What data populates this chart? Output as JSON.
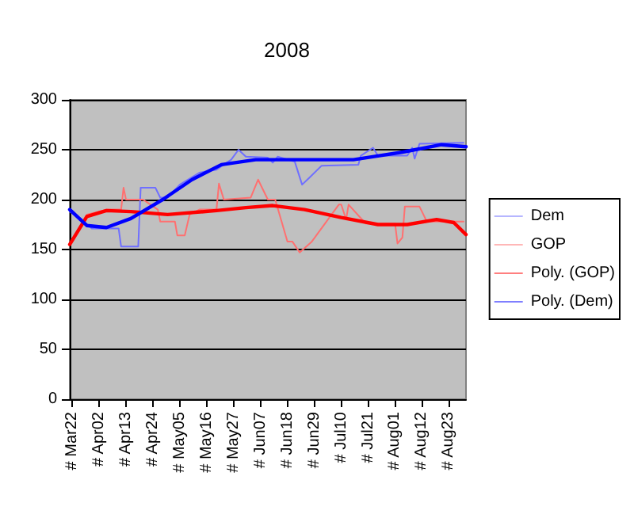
{
  "chart_data": {
    "type": "line",
    "title": "2008",
    "legend": "right",
    "grid": "y",
    "marker": "none",
    "line_style": "solid",
    "xlim": [
      "--03-21",
      "--08-30"
    ],
    "xticks": [
      {
        "value": "--03-22",
        "label": "# Mar22"
      },
      {
        "value": "--04-02",
        "label": "# Apr02"
      },
      {
        "value": "--04-13",
        "label": "# Apr13"
      },
      {
        "value": "--04-24",
        "label": "# Apr24"
      },
      {
        "value": "--05-05",
        "label": "# May05"
      },
      {
        "value": "--05-16",
        "label": "# May16"
      },
      {
        "value": "--05-27",
        "label": "# May27"
      },
      {
        "value": "--06-07",
        "label": "# Jun07"
      },
      {
        "value": "--06-18",
        "label": "# Jun18"
      },
      {
        "value": "--06-29",
        "label": "# Jun29"
      },
      {
        "value": "--07-10",
        "label": "# Jul10"
      },
      {
        "value": "--07-21",
        "label": "# Jul21"
      },
      {
        "value": "--08-01",
        "label": "# Aug01"
      },
      {
        "value": "--08-12",
        "label": "# Aug12"
      },
      {
        "value": "--08-23",
        "label": "# Aug23"
      }
    ],
    "ylim": [
      0,
      300
    ],
    "yticks": [
      0,
      50,
      100,
      150,
      200,
      250,
      300
    ],
    "series": [
      {
        "name": "Dem",
        "color": "#6f6fff",
        "x": [
          "--03-21",
          "--03-26",
          "--03-30",
          "--04-10",
          "--04-11",
          "--04-18",
          "--04-19",
          "--04-25",
          "--04-27",
          "--04-30",
          "--05-05",
          "--05-13",
          "--05-20",
          "--05-26",
          "--05-29",
          "--06-01",
          "--06-10",
          "--06-12",
          "--06-14",
          "--06-21",
          "--06-24",
          "--06-27",
          "--07-02",
          "--07-17",
          "--07-18",
          "--07-23",
          "--07-25",
          "--08-06",
          "--08-08",
          "--08-09",
          "--08-11",
          "--08-29"
        ],
        "values": [
          188,
          180,
          171,
          171,
          153,
          153,
          212,
          212,
          202,
          202,
          215,
          227,
          230,
          240,
          250,
          243,
          242,
          237,
          243,
          238,
          215,
          222,
          234,
          235,
          244,
          252,
          244,
          244,
          252,
          241,
          256,
          257
        ]
      },
      {
        "name": "GOP",
        "color": "#ff7070",
        "x": [
          "--03-21",
          "--03-28",
          "--04-05",
          "--04-11",
          "--04-12",
          "--04-13",
          "--04-20",
          "--04-26",
          "--04-27",
          "--05-03",
          "--05-04",
          "--05-07",
          "--05-09",
          "--05-13",
          "--05-20",
          "--05-21",
          "--05-23",
          "--06-03",
          "--06-06",
          "--06-10",
          "--06-13",
          "--06-18",
          "--06-20",
          "--06-23",
          "--06-28",
          "--07-09",
          "--07-10",
          "--07-12",
          "--07-13",
          "--07-20",
          "--08-01",
          "--08-02",
          "--08-04",
          "--08-05",
          "--08-11",
          "--08-14",
          "--08-17",
          "--08-29"
        ],
        "values": [
          155,
          185,
          190,
          190,
          212,
          200,
          200,
          190,
          178,
          178,
          164,
          164,
          185,
          190,
          190,
          216,
          200,
          202,
          220,
          200,
          200,
          158,
          158,
          147,
          158,
          195,
          195,
          180,
          195,
          176,
          176,
          156,
          162,
          193,
          193,
          178,
          178,
          178
        ]
      },
      {
        "name": "Poly. (GOP)",
        "color": "#ff0000",
        "x": [
          "--03-21",
          "--03-28",
          "--04-05",
          "--04-15",
          "--04-30",
          "--05-20",
          "--06-01",
          "--06-12",
          "--06-25",
          "--07-10",
          "--07-25",
          "--08-06",
          "--08-18",
          "--08-25",
          "--08-30"
        ],
        "values": [
          155,
          183,
          189,
          188,
          185,
          189,
          192,
          194,
          190,
          182,
          175,
          175,
          180,
          177,
          165
        ]
      },
      {
        "name": "Poly. (Dem)",
        "color": "#0000ff",
        "x": [
          "--03-21",
          "--03-28",
          "--04-05",
          "--04-15",
          "--04-28",
          "--05-10",
          "--05-22",
          "--06-05",
          "--06-25",
          "--07-15",
          "--08-05",
          "--08-20",
          "--08-30"
        ],
        "values": [
          190,
          174,
          172,
          181,
          200,
          220,
          235,
          240,
          240,
          240,
          248,
          255,
          253
        ]
      }
    ]
  }
}
